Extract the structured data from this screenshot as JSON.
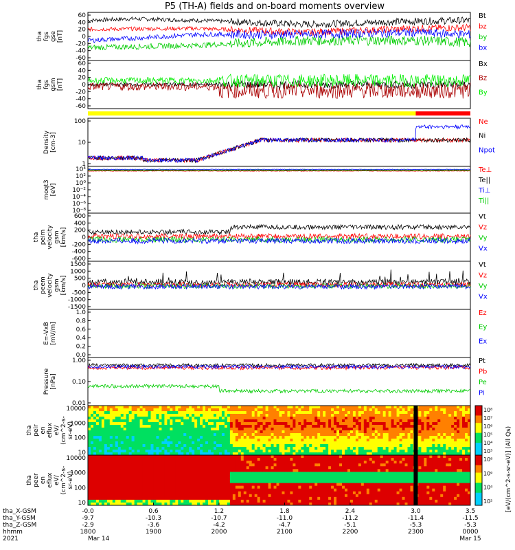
{
  "title": "P5 (TH-A) fields and on-board moments overview",
  "chart_data": {
    "type": "line",
    "x_label_note": "",
    "x_ticks": {
      "positions_hours": [
        0.0,
        0.6,
        1.2,
        1.8,
        2.4,
        3.0,
        3.5
      ],
      "rows": [
        {
          "name": "tha_X-GSM",
          "values": [
            "-0.0",
            "0.6",
            "1.2",
            "1.8",
            "2.4",
            "3.0",
            "3.5"
          ]
        },
        {
          "name": "tha_Y-GSM",
          "values": [
            "-9.7",
            "-10.3",
            "-10.7",
            "-11.0",
            "-11.2",
            "-11.4",
            "-11.5"
          ]
        },
        {
          "name": "tha_Z-GSM",
          "values": [
            "-2.9",
            "-3.6",
            "-4.2",
            "-4.7",
            "-5.1",
            "-5.3",
            "-5.3"
          ]
        },
        {
          "name": "hhmm",
          "values": [
            "1800",
            "1900",
            "2000",
            "2100",
            "2200",
            "2300",
            "0000"
          ]
        },
        {
          "name": "2021",
          "values": [
            "Mar 14",
            "",
            "",
            "",
            "",
            "",
            "Mar 15"
          ]
        }
      ]
    },
    "panels": [
      {
        "id": "fgs-gse",
        "ylabel": [
          "tha",
          "fgs",
          "gse",
          "[nT]"
        ],
        "yticks": [
          "60",
          "40",
          "20",
          "0",
          "-20",
          "-40",
          "-60"
        ],
        "ylim": [
          -60,
          60
        ],
        "series": [
          {
            "name": "Bt",
            "color": "#000000",
            "base": 40,
            "noise": 5,
            "trend": [
              [
                0,
                40
              ],
              [
                0.4,
                44
              ],
              [
                1.0,
                40
              ],
              [
                2.0,
                30
              ],
              [
                3.0,
                38
              ],
              [
                3.5,
                40
              ]
            ]
          },
          {
            "name": "bz",
            "color": "#ff0000",
            "base": 20,
            "noise": 5,
            "trend": [
              [
                0,
                18
              ],
              [
                1.0,
                20
              ],
              [
                2.0,
                10
              ],
              [
                3.0,
                20
              ],
              [
                3.5,
                22
              ]
            ]
          },
          {
            "name": "by",
            "color": "#00cc00",
            "base": -25,
            "noise": 7,
            "trend": [
              [
                0,
                -28
              ],
              [
                1.0,
                -22
              ],
              [
                2.0,
                -10
              ],
              [
                3.0,
                -10
              ],
              [
                3.5,
                -15
              ]
            ]
          },
          {
            "name": "bx",
            "color": "#0000ff",
            "base": 5,
            "noise": 6,
            "trend": [
              [
                0,
                -10
              ],
              [
                0.6,
                -2
              ],
              [
                1.0,
                5
              ],
              [
                2.0,
                5
              ],
              [
                3.0,
                10
              ],
              [
                3.5,
                5
              ]
            ]
          }
        ]
      },
      {
        "id": "fgs-gsm",
        "ylabel": [
          "tha",
          "fgs",
          "gsm",
          "[nT]"
        ],
        "yticks": [
          "60",
          "40",
          "20",
          "0",
          "-20",
          "-40",
          "-60"
        ],
        "ylim": [
          -60,
          60
        ],
        "series": [
          {
            "name": "Bx",
            "color": "#000000",
            "base": 0,
            "noise": 5
          },
          {
            "name": "Bz",
            "color": "#aa0000",
            "base": -5,
            "noise": 10
          },
          {
            "name": "By",
            "color": "#00ee00",
            "base": 10,
            "noise": 8
          }
        ]
      },
      {
        "id": "flag-bar",
        "segments": [
          {
            "from": 0.0,
            "to": 3.0,
            "color": "#ffff00"
          },
          {
            "from": 3.0,
            "to": 3.5,
            "color": "#ff0000"
          }
        ]
      },
      {
        "id": "density",
        "ylabel": [
          "Density",
          "[cm-3]"
        ],
        "yticks": [
          "100",
          "10",
          "1"
        ],
        "log": true,
        "ylim": [
          0.2,
          200
        ],
        "series": [
          {
            "name": "Ne",
            "color": "#ff0000"
          },
          {
            "name": "Ni",
            "color": "#000000"
          },
          {
            "name": "Npot",
            "color": "#0000ff"
          }
        ]
      },
      {
        "id": "temperature",
        "ylabel": [
          "moqt3",
          "[eV]"
        ],
        "yticks": [
          "10⁴",
          "10²",
          "10⁰",
          "10⁻²",
          "10⁻⁴",
          "10⁻⁶",
          "10⁻⁸"
        ],
        "log": true,
        "ylim": [
          1e-09,
          100000.0
        ],
        "series": [
          {
            "name": "Te⊥",
            "color": "#ff0000"
          },
          {
            "name": "Te||",
            "color": "#000000"
          },
          {
            "name": "Ti⊥",
            "color": "#0000ff"
          },
          {
            "name": "Ti||",
            "color": "#00cc00"
          }
        ]
      },
      {
        "id": "peim-velocity",
        "ylabel": [
          "tha",
          "peim",
          "velocity",
          "gsm",
          "[km/s]"
        ],
        "yticks": [
          "600",
          "400",
          "200",
          "0",
          "-200",
          "-400",
          "-600"
        ],
        "ylim": [
          -600,
          600
        ],
        "series": [
          {
            "name": "Vt",
            "color": "#000000"
          },
          {
            "name": "Vz",
            "color": "#ff0000"
          },
          {
            "name": "Vy",
            "color": "#00cc00"
          },
          {
            "name": "Vx",
            "color": "#0000ff"
          }
        ]
      },
      {
        "id": "peem-velocity",
        "ylabel": [
          "tha",
          "peem",
          "velocity",
          "gsm",
          "[km/s]"
        ],
        "yticks": [
          "1500",
          "1000",
          "500",
          "0",
          "-500",
          "-1000",
          "-1500"
        ],
        "ylim": [
          -1500,
          1500
        ],
        "series": [
          {
            "name": "Vt",
            "color": "#000000"
          },
          {
            "name": "Vz",
            "color": "#ff0000"
          },
          {
            "name": "Vy",
            "color": "#00cc00"
          },
          {
            "name": "Vx",
            "color": "#0000ff"
          }
        ]
      },
      {
        "id": "efield",
        "ylabel": [
          "E=-VxB",
          "[mV/m]"
        ],
        "yticks": [
          "1.0",
          "0.8",
          "0.6",
          "0.4",
          "0.2",
          "0.0"
        ],
        "ylim": [
          0,
          1
        ],
        "series": [
          {
            "name": "Ez",
            "color": "#ff0000"
          },
          {
            "name": "Ey",
            "color": "#00cc00"
          },
          {
            "name": "Ex",
            "color": "#0000ff"
          }
        ]
      },
      {
        "id": "pressure",
        "ylabel": [
          "Pressure",
          "[nPa]"
        ],
        "yticks": [
          "1.00",
          "0.10",
          "0.01"
        ],
        "log": true,
        "ylim": [
          0.003,
          3
        ],
        "series": [
          {
            "name": "Pt",
            "color": "#000000"
          },
          {
            "name": "Pb",
            "color": "#ff0000"
          },
          {
            "name": "Pe",
            "color": "#00cc00"
          },
          {
            "name": "Pi",
            "color": "#0000ff"
          }
        ]
      },
      {
        "id": "peir-spectrogram",
        "type": "heatmap",
        "ylabel": [
          "tha",
          "peir",
          "en",
          "eflux",
          "eV/",
          "(cm^2-s-",
          "sr-eV)"
        ],
        "yticks": [
          "10000",
          "1000",
          "100",
          "10"
        ],
        "colorbar": {
          "ticks": [
            "10⁸",
            "10⁷",
            "10⁶",
            "10⁵",
            "10⁴",
            "10³"
          ],
          "label": "[eV/(cm^2-s-sr-eV)] (All Qs)"
        }
      },
      {
        "id": "peer-spectrogram",
        "type": "heatmap",
        "ylabel": [
          "tha",
          "peer",
          "en",
          "eflux",
          "eV/",
          "(cm^2-s-",
          "sr-eV)"
        ],
        "yticks": [
          "10000",
          "1000",
          "100",
          "10"
        ],
        "colorbar": {
          "ticks": [
            "10⁸",
            "10⁶",
            "10⁴",
            "10²"
          ],
          "label": ""
        }
      }
    ]
  }
}
